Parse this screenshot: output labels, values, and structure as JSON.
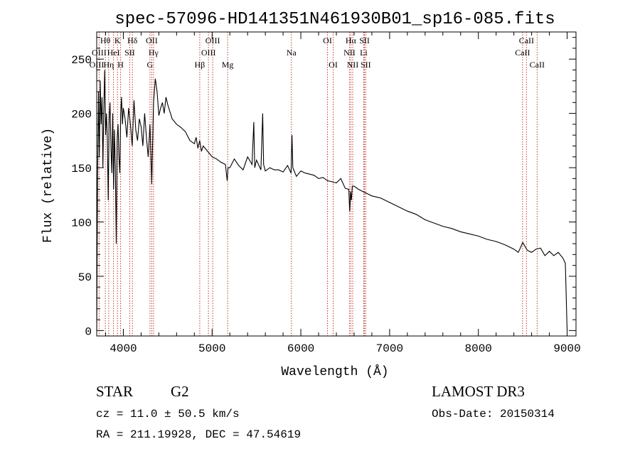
{
  "chart_data": {
    "type": "line",
    "title": "spec-57096-HD141351N461930B01_sp16-085.fits",
    "xlabel": "Wavelength (Å)",
    "ylabel": "Flux (relative)",
    "xlim": [
      3700,
      9100
    ],
    "ylim": [
      -5,
      275
    ],
    "xticks": [
      4000,
      5000,
      6000,
      7000,
      8000,
      9000
    ],
    "yticks": [
      0,
      50,
      100,
      150,
      200,
      250
    ],
    "series": [
      {
        "name": "spectrum",
        "x": [
          3700,
          3710,
          3720,
          3730,
          3740,
          3750,
          3760,
          3770,
          3780,
          3790,
          3800,
          3810,
          3820,
          3830,
          3840,
          3850,
          3860,
          3870,
          3880,
          3890,
          3900,
          3910,
          3920,
          3930,
          3940,
          3950,
          3960,
          3970,
          3980,
          3990,
          4000,
          4020,
          4040,
          4060,
          4080,
          4100,
          4120,
          4140,
          4160,
          4180,
          4200,
          4220,
          4240,
          4260,
          4280,
          4300,
          4320,
          4340,
          4360,
          4380,
          4400,
          4420,
          4440,
          4460,
          4480,
          4500,
          4550,
          4600,
          4650,
          4700,
          4750,
          4800,
          4820,
          4840,
          4860,
          4880,
          4900,
          4950,
          5000,
          5050,
          5100,
          5150,
          5170,
          5180,
          5200,
          5250,
          5300,
          5350,
          5400,
          5450,
          5470,
          5480,
          5500,
          5550,
          5570,
          5580,
          5600,
          5650,
          5700,
          5750,
          5800,
          5850,
          5890,
          5900,
          5910,
          5950,
          6000,
          6050,
          6100,
          6150,
          6200,
          6250,
          6300,
          6350,
          6400,
          6450,
          6500,
          6540,
          6550,
          6560,
          6570,
          6580,
          6600,
          6650,
          6700,
          6750,
          6800,
          6850,
          6900,
          6950,
          7000,
          7100,
          7200,
          7300,
          7400,
          7500,
          7600,
          7700,
          7800,
          7900,
          8000,
          8100,
          8200,
          8300,
          8400,
          8450,
          8500,
          8550,
          8600,
          8650,
          8700,
          8750,
          8800,
          8850,
          8900,
          8950,
          8980,
          9000
        ],
        "y": [
          0,
          140,
          220,
          160,
          230,
          190,
          215,
          150,
          205,
          240,
          180,
          200,
          175,
          120,
          195,
          210,
          170,
          145,
          200,
          130,
          185,
          150,
          80,
          175,
          190,
          160,
          145,
          200,
          215,
          190,
          205,
          195,
          178,
          205,
          190,
          170,
          212,
          185,
          175,
          195,
          188,
          170,
          200,
          178,
          160,
          190,
          135,
          210,
          232,
          220,
          198,
          205,
          210,
          200,
          215,
          208,
          195,
          190,
          187,
          183,
          175,
          172,
          178,
          168,
          175,
          165,
          170,
          165,
          160,
          158,
          155,
          153,
          138,
          150,
          150,
          158,
          152,
          148,
          160,
          153,
          192,
          150,
          157,
          148,
          200,
          153,
          147,
          150,
          148,
          148,
          146,
          152,
          145,
          180,
          150,
          142,
          147,
          145,
          144,
          143,
          140,
          141,
          138,
          137,
          136,
          140,
          131,
          130,
          110,
          128,
          120,
          133,
          133,
          130,
          128,
          126,
          124,
          123,
          122,
          120,
          118,
          114,
          110,
          107,
          102,
          99,
          96,
          94,
          91,
          89,
          87,
          84,
          82,
          79,
          75,
          72,
          81,
          74,
          72,
          75,
          76,
          69,
          73,
          69,
          72,
          67,
          62,
          0
        ]
      }
    ],
    "line_labels": [
      {
        "label": "Hθ",
        "x": 3797,
        "row": 1
      },
      {
        "label": "K",
        "x": 3934,
        "row": 1
      },
      {
        "label": "Hδ",
        "x": 4102,
        "row": 1
      },
      {
        "label": "OII",
        "x": 4320,
        "row": 1
      },
      {
        "label": "OIII",
        "x": 5007,
        "row": 1
      },
      {
        "label": "OI",
        "x": 6300,
        "row": 1
      },
      {
        "label": "Hα",
        "x": 6563,
        "row": 1
      },
      {
        "label": "SII",
        "x": 6717,
        "row": 1
      },
      {
        "label": "CaII",
        "x": 8542,
        "row": 1
      },
      {
        "label": "OIII",
        "x": 3727,
        "row": 2
      },
      {
        "label": "HeI",
        "x": 3889,
        "row": 2
      },
      {
        "label": "SII",
        "x": 4072,
        "row": 2
      },
      {
        "label": "Hγ",
        "x": 4340,
        "row": 2
      },
      {
        "label": "OIII",
        "x": 4959,
        "row": 2
      },
      {
        "label": "Na",
        "x": 5893,
        "row": 2
      },
      {
        "label": "NII",
        "x": 6548,
        "row": 2
      },
      {
        "label": "Li",
        "x": 6708,
        "row": 2
      },
      {
        "label": "CaII",
        "x": 8498,
        "row": 2
      },
      {
        "label": "OIII",
        "x": 3700,
        "row": 3
      },
      {
        "label": "Hη",
        "x": 3835,
        "row": 3
      },
      {
        "label": "H",
        "x": 3969,
        "row": 3
      },
      {
        "label": "G",
        "x": 4300,
        "row": 3
      },
      {
        "label": "Hβ",
        "x": 4861,
        "row": 3
      },
      {
        "label": "Mg",
        "x": 5175,
        "row": 3
      },
      {
        "label": "OI",
        "x": 6364,
        "row": 3
      },
      {
        "label": "NII",
        "x": 6584,
        "row": 3
      },
      {
        "label": "SII",
        "x": 6731,
        "row": 3
      },
      {
        "label": "CaII",
        "x": 8662,
        "row": 3
      }
    ],
    "line_marks": [
      3727,
      3797,
      3835,
      3889,
      3934,
      3969,
      4072,
      4102,
      4300,
      4320,
      4340,
      4861,
      4959,
      5007,
      5175,
      5893,
      6300,
      6364,
      6548,
      6563,
      6584,
      6708,
      6717,
      6731,
      8498,
      8542,
      8662
    ]
  },
  "info": {
    "class_label": "STAR",
    "subclass": "G2",
    "survey": "LAMOST DR3",
    "cz": "cz = 11.0 ± 50.5 km/s",
    "obs_date": "Obs-Date: 20150314",
    "coords": "RA = 211.19928, DEC =  47.54619"
  }
}
